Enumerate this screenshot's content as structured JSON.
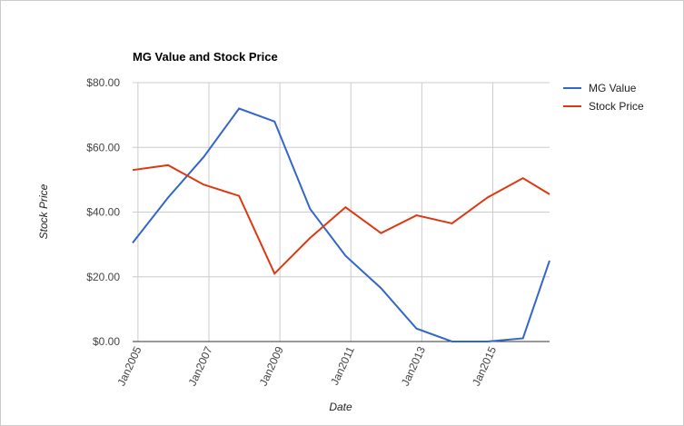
{
  "chart_data": {
    "type": "line",
    "title": "MG Value and Stock Price",
    "x_label": "Date",
    "y_label": "Stock Price",
    "x": [
      2004.85,
      2005.85,
      2006.85,
      2007.85,
      2008.85,
      2009.85,
      2010.85,
      2011.85,
      2012.85,
      2013.85,
      2014.85,
      2015.85,
      2016.6
    ],
    "series": [
      {
        "name": "MG Value",
        "color": "#3366cc",
        "values": [
          30.5,
          44.5,
          57,
          72,
          68,
          41,
          26.5,
          16.5,
          4,
          0,
          0,
          1,
          25
        ]
      },
      {
        "name": "Stock Price",
        "color": "#dc3912",
        "values": [
          53,
          54.5,
          48.5,
          45,
          21,
          32,
          41.5,
          33.5,
          39,
          36.5,
          44.5,
          50.5,
          45.5
        ]
      }
    ],
    "xlim": [
      2004.85,
      2016.6
    ],
    "xticks": [
      {
        "value": 2005,
        "label": "Jan2005"
      },
      {
        "value": 2007,
        "label": "Jan2007"
      },
      {
        "value": 2009,
        "label": "Jan2009"
      },
      {
        "value": 2011,
        "label": "Jan2011"
      },
      {
        "value": 2013,
        "label": "Jan2013"
      },
      {
        "value": 2015,
        "label": "Jan2015"
      }
    ],
    "ylim": [
      0,
      80
    ],
    "yticks": [
      {
        "value": 0,
        "label": "$0.00"
      },
      {
        "value": 20,
        "label": "$20.00"
      },
      {
        "value": 40,
        "label": "$40.00"
      },
      {
        "value": 60,
        "label": "$60.00"
      },
      {
        "value": 80,
        "label": "$80.00"
      }
    ],
    "grid": true,
    "legend": "right"
  }
}
